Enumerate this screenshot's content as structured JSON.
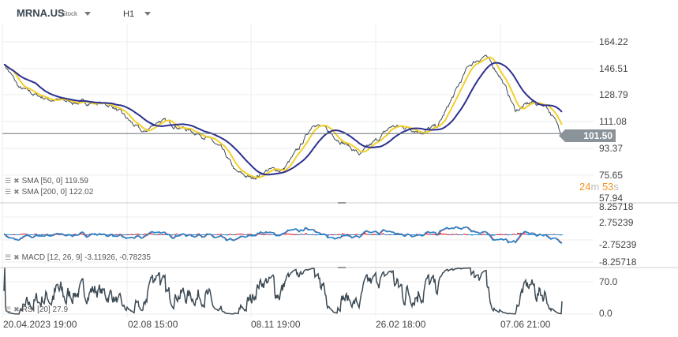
{
  "header": {
    "symbol": "MRNA.US",
    "type": "Stock",
    "timeframe": "H1"
  },
  "current_price": "101.50",
  "countdown": {
    "min": "24",
    "min_unit": "m",
    "sec": "53",
    "sec_unit": "s"
  },
  "legends": {
    "sma50": {
      "label": "SMA",
      "params": "[50,  0]",
      "value": "119.59"
    },
    "sma200": {
      "label": "SMA",
      "params": "[200,  0]",
      "value": "122.02"
    },
    "macd": {
      "label": "MACD",
      "params": "[12,  26,  9]",
      "value": "-3.11926,  -0.78235"
    },
    "rsi": {
      "label": "RSI",
      "params": "[20]",
      "value": "27.9"
    }
  },
  "colors": {
    "price": "#3f4a52",
    "sma50": "#f2cf2a",
    "sma200": "#2b2f8f",
    "macd_line": "#1e8ad3",
    "signal_line": "#e0393b",
    "hist_pos": "#d0021b",
    "hist_neg": "#1e8ad3",
    "rsi": "#3d4b55"
  },
  "chart_data": [
    {
      "type": "line",
      "title": "",
      "price_axis_ticks": [
        "164.22",
        "146.51",
        "128.79",
        "111.08",
        "93.37",
        "75.65",
        "57.94"
      ],
      "ylim": [
        57.94,
        164.22
      ],
      "x_ticks": [
        "20.04.2023  19:00",
        "02.08  15:00",
        "08.11  19:00",
        "26.02  18:00",
        "07.06  21:00"
      ],
      "price_approx": [
        149.6,
        132.4,
        128.0,
        124.8,
        123.7,
        122.6,
        122.6,
        120.5,
        110.7,
        101.5,
        110.7,
        107.5,
        103.7,
        99.9,
        90.8,
        74.6,
        70.8,
        76.7,
        76.7,
        90.2,
        109.7,
        102.1,
        95.1,
        87.0,
        96.2,
        106.4,
        105.9,
        103.2,
        106.4,
        127.0,
        148.0,
        155.0,
        141.5,
        117.2,
        122.6,
        121.0,
        101.5
      ],
      "series": [
        {
          "name": "SMA [50, 0]",
          "last": 119.59
        },
        {
          "name": "SMA [200, 0]",
          "last": 122.02
        }
      ],
      "grid": true
    },
    {
      "type": "bar",
      "title": "MACD [12, 26, 9]",
      "axis_ticks": [
        "8.25718",
        "2.75239",
        "-2.75239",
        "-8.25718"
      ],
      "ylim": [
        -8.25718,
        8.25718
      ],
      "last": [
        -3.11926,
        -0.78235
      ]
    },
    {
      "type": "line",
      "title": "RSI [20]",
      "axis_ticks": [
        "70.0",
        "0.0"
      ],
      "ylim": [
        0,
        100
      ],
      "last": 27.9
    }
  ]
}
